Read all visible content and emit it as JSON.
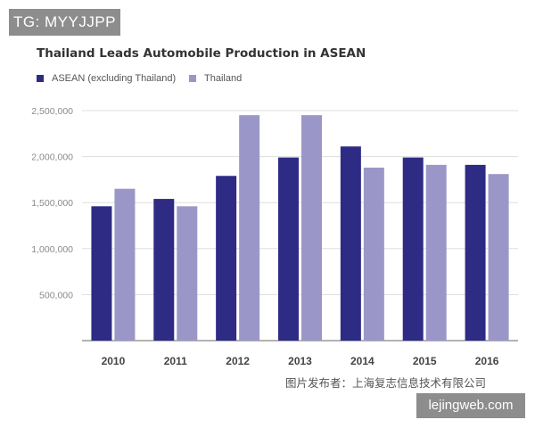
{
  "watermark_tag": "TG: MYYJJPP",
  "site_badge": "lejingweb.com",
  "credit": "图片发布者：上海复志信息技术有限公司",
  "colors": {
    "asean": "#2e2b85",
    "thailand": "#9a97c8",
    "grid": "#dddddd",
    "axis_text": "#8a8a8a"
  },
  "chart_data": {
    "type": "bar",
    "title": "Thailand Leads Automobile Production in ASEAN",
    "xlabel": "",
    "ylabel": "",
    "categories": [
      "2010",
      "2011",
      "2012",
      "2013",
      "2014",
      "2015",
      "2016"
    ],
    "series": [
      {
        "name": "ASEAN (excluding Thailand)",
        "values": [
          1460000,
          1540000,
          1790000,
          1990000,
          2110000,
          1990000,
          1910000
        ]
      },
      {
        "name": "Thailand",
        "values": [
          1650000,
          1460000,
          2450000,
          2450000,
          1880000,
          1910000,
          1810000
        ]
      }
    ],
    "yticks": [
      "500,000",
      "1,000,000",
      "1,500,000",
      "2,000,000",
      "2,500,000"
    ],
    "ylim": [
      0,
      2500000
    ],
    "grid": true,
    "legend_position": "top-left"
  }
}
